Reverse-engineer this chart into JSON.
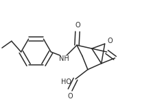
{
  "bg_color": "#ffffff",
  "line_color": "#2a2a2a",
  "line_width": 1.1,
  "font_size": 7.0,
  "figsize": [
    2.2,
    1.64
  ],
  "dpi": 100,
  "xlim": [
    0,
    220
  ],
  "ylim": [
    0,
    164
  ]
}
